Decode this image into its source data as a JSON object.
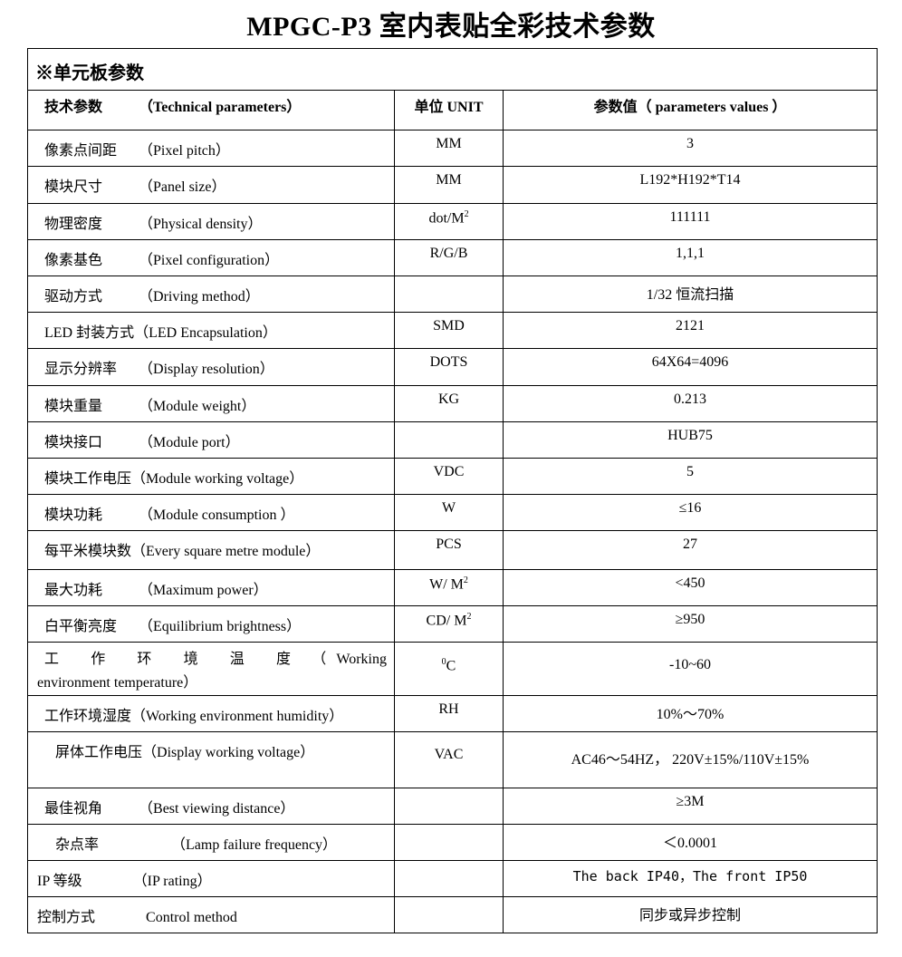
{
  "title": "MPGC-P3 室内表贴全彩技术参数",
  "section_title": "※单元板参数",
  "headers": {
    "param": "技术参数",
    "param_en": "（Technical parameters）",
    "unit": "单位 UNIT",
    "value": "参数值（ parameters values ）"
  },
  "rows": [
    {
      "cn": "像素点间距",
      "en": "（Pixel pitch）",
      "unit": "MM",
      "value": "3"
    },
    {
      "cn": "模块尺寸",
      "en": "（Panel size）",
      "unit": "MM",
      "value": "L192*H192*T14"
    },
    {
      "cn": "物理密度",
      "en": "（Physical density）",
      "unit": "dot/M",
      "unit_sup": "2",
      "value": "111111"
    },
    {
      "cn": "像素基色",
      "en": "（Pixel configuration）",
      "unit": "R/G/B",
      "value": "1,1,1"
    },
    {
      "cn": "驱动方式",
      "en": "（Driving method）",
      "unit": "",
      "value": "1/32 恒流扫描"
    },
    {
      "cn": "LED 封装方式",
      "en": "（LED Encapsulation）",
      "unit": "SMD",
      "value": "2121"
    },
    {
      "cn": "显示分辨率",
      "en": "（Display resolution）",
      "unit": "DOTS",
      "value": "64X64=4096"
    },
    {
      "cn": "模块重量",
      "en": "（Module weight）",
      "unit": "KG",
      "value": "0.213"
    },
    {
      "cn": "模块接口",
      "en": "（Module port）",
      "unit": "",
      "value": "HUB75"
    },
    {
      "cn": "模块工作电压",
      "en": "（Module working voltage）",
      "unit": "VDC",
      "value": "5"
    },
    {
      "cn": "模块功耗",
      "en": "（Module consumption ）",
      "unit": "W",
      "value": "≤16"
    },
    {
      "cn": "每平米模块数",
      "en": "（Every square metre module）",
      "unit": "PCS",
      "value": "27"
    },
    {
      "cn": "最大功耗",
      "en": "（Maximum power）",
      "unit": "W/ M",
      "unit_sup": "2",
      "value": "<450"
    },
    {
      "cn": "白平衡亮度",
      "en": "（Equilibrium brightness）",
      "unit": "CD/ M",
      "unit_sup": "2",
      "value": "≥950"
    },
    {
      "cn": "工 作 环 境 温 度",
      "en": "（ Working environment temperature）",
      "unit": "C",
      "unit_pre_sup": "0",
      "value": "-10~60"
    },
    {
      "cn": "工作环境湿度",
      "en": "（Working environment humidity）",
      "unit": "RH",
      "value": "10%～70%"
    },
    {
      "cn": "屏体工作电压",
      "en": "（Display working voltage）",
      "unit": "VAC",
      "value": "AC46～54HZ， 220V±15%/110V±15%"
    },
    {
      "cn": "最佳视角",
      "en": "（Best viewing distance）",
      "unit": "",
      "value": "≥3M"
    },
    {
      "cn": "杂点率",
      "en": "（Lamp failure frequency）",
      "unit": "",
      "value": "＜0.0001"
    },
    {
      "cn": "IP 等级",
      "en": "（IP rating）",
      "unit": "",
      "value": "The back IP40，The front IP50"
    },
    {
      "cn": "控制方式",
      "en": "Control method",
      "unit": "",
      "value": "同步或异步控制"
    }
  ]
}
